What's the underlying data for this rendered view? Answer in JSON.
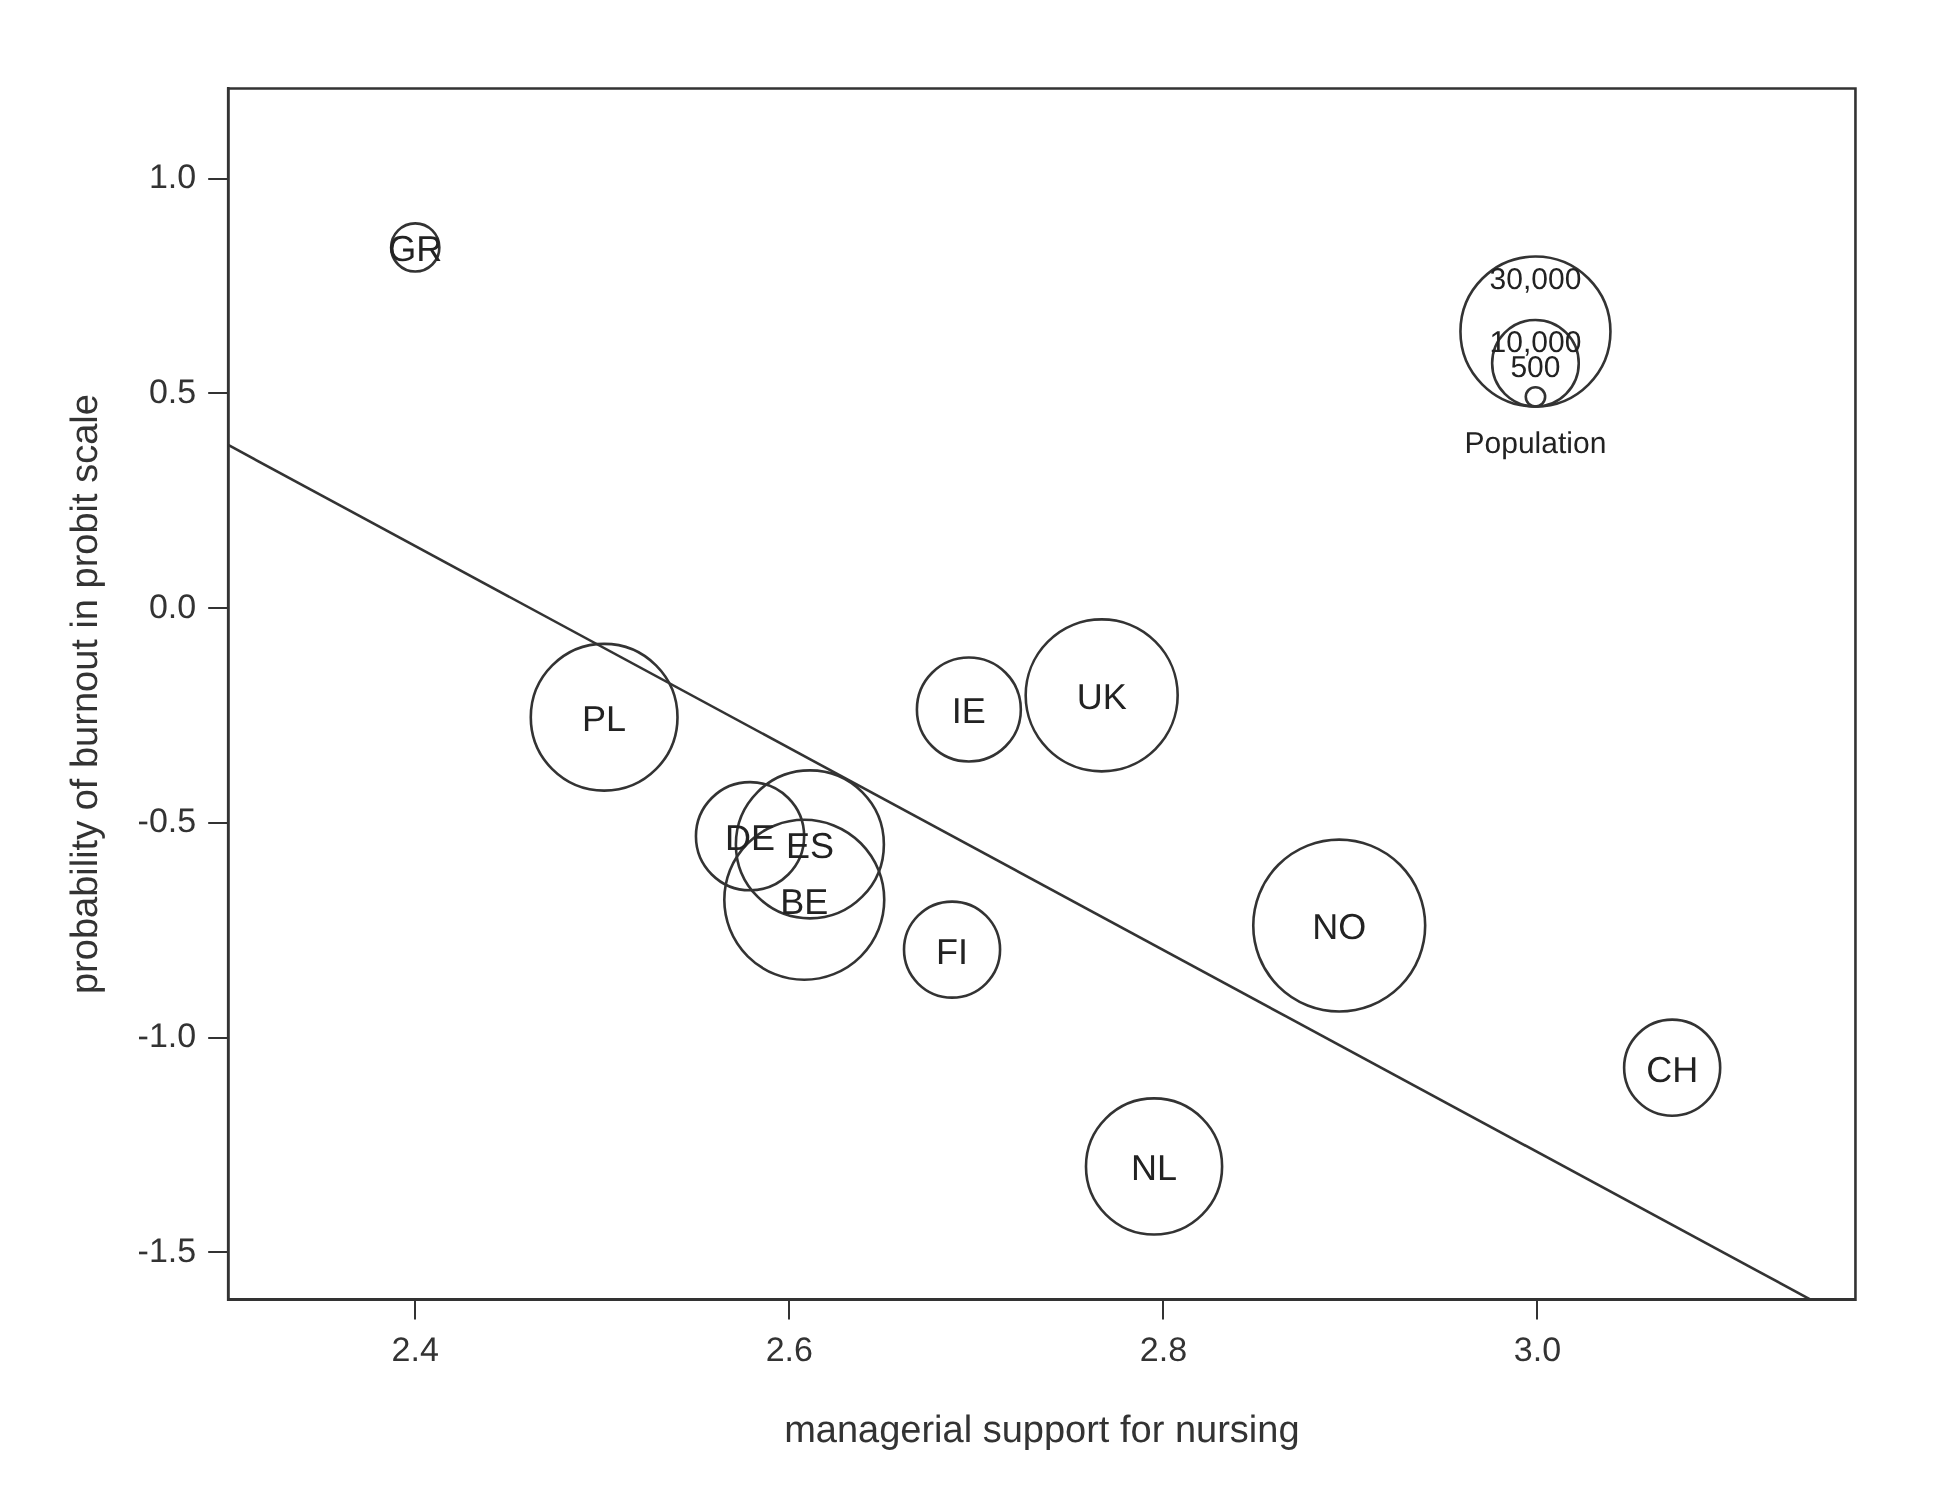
{
  "chart_data": {
    "type": "bubble",
    "xlabel": "managerial support for nursing",
    "ylabel": "probability of burnout in probit scale",
    "legend_title": "Population",
    "size_legend": [
      {
        "value": 500,
        "label": "500"
      },
      {
        "value": 10000,
        "label": "10,000"
      },
      {
        "value": 30000,
        "label": "30,000"
      }
    ],
    "grid": false,
    "xlim": [
      2.3,
      3.17
    ],
    "xticks": [
      2.4,
      2.6,
      2.8,
      {
        "value": 3,
        "label": "3.0"
      }
    ],
    "ylim": [
      -1.61,
      1.21
    ],
    "yticks": [
      {
        "value": 1,
        "label": "1.0"
      },
      0.5,
      {
        "value": 0,
        "label": "0.0"
      },
      -0.5,
      {
        "value": -1,
        "label": "-1.0"
      },
      -1.5
    ],
    "series": [
      {
        "color": "#333333",
        "x": [
          2.4,
          2.501,
          2.579,
          2.611,
          2.608,
          2.696,
          2.687,
          2.767,
          2.894,
          2.795,
          3.072
        ],
        "values": [
          0.84,
          -0.254,
          -0.531,
          -0.55,
          -0.679,
          -0.236,
          -0.795,
          -0.203,
          -0.739,
          -1.3,
          -1.07
        ],
        "sizes": [
          3100,
          28700,
          15600,
          29200,
          34100,
          14400,
          12300,
          30800,
          39400,
          24700,
          12300
        ],
        "value_labels": [
          "GR",
          "PL",
          "DE",
          "ES",
          "BE",
          "IE",
          "FI",
          "UK",
          "NO",
          "NL",
          "CH"
        ]
      },
      {
        "type": "line",
        "color": "#333333",
        "x": [
          2.3,
          3.146
        ],
        "values": [
          0.38,
          -1.61
        ]
      }
    ]
  }
}
